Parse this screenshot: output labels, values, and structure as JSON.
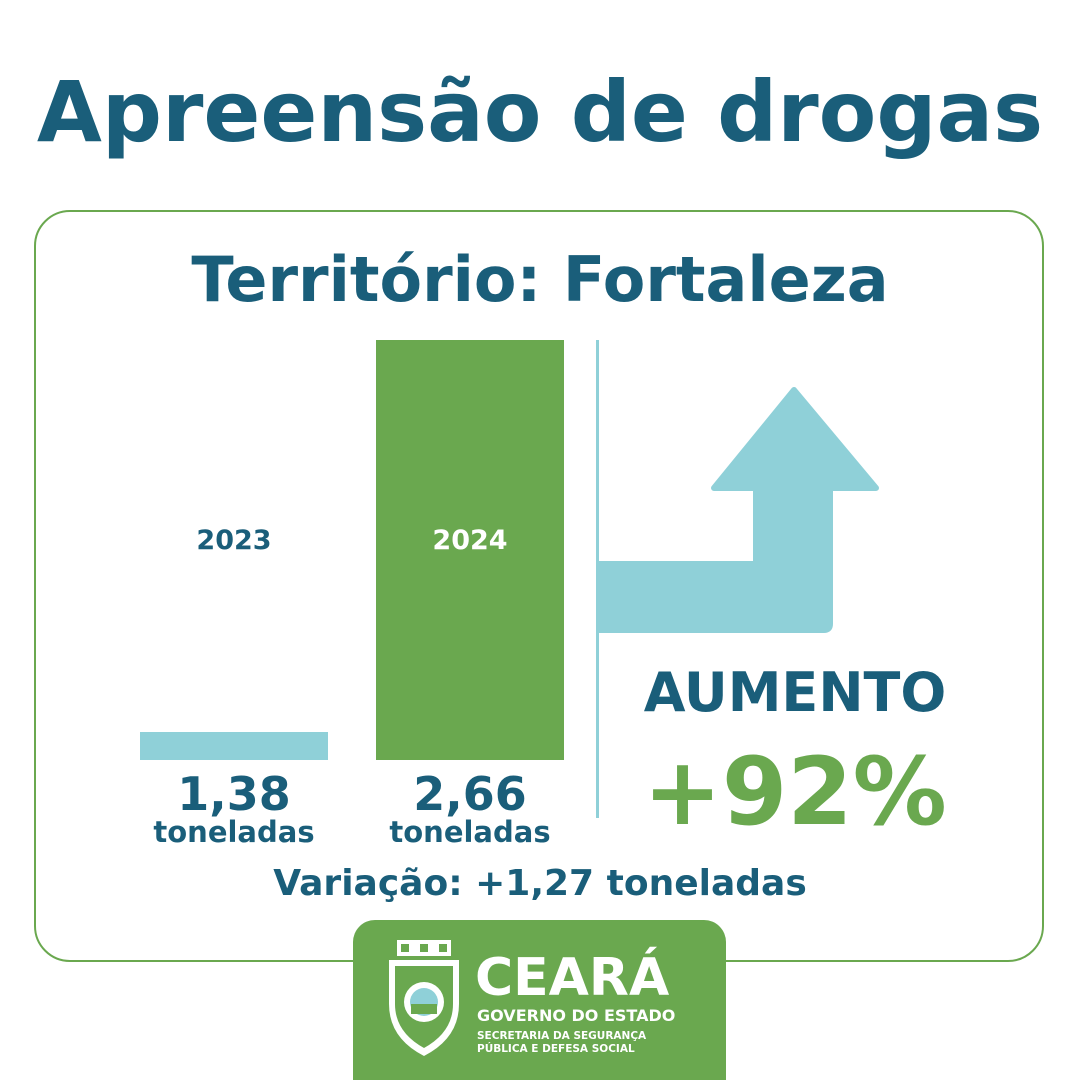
{
  "title": "Apreensão de drogas",
  "subtitle": "Território: Fortaleza",
  "chart_data": {
    "type": "bar",
    "categories": [
      "2023",
      "2024"
    ],
    "values": [
      1.38,
      2.66
    ],
    "value_labels": [
      "1,38",
      "2,66"
    ],
    "unit": "toneladas",
    "colors": [
      "#8fd0d8",
      "#6aa84f"
    ],
    "grid": false
  },
  "trend": {
    "label": "AUMENTO",
    "percent": "+92%",
    "direction": "up",
    "arrow_icon": "up-right-arrow-icon"
  },
  "variation": "Variação: +1,27 toneladas",
  "footer": {
    "brand": "CEARÁ",
    "government": "GOVERNO DO ESTADO",
    "secretariat_line1": "SECRETARIA DA SEGURANÇA",
    "secretariat_line2": "PÚBLICA E DEFESA SOCIAL",
    "crest_icon": "state-coat-of-arms-icon"
  },
  "colors": {
    "primary": "#1a5e7a",
    "accent": "#6aa84f",
    "light": "#8fd0d8"
  }
}
